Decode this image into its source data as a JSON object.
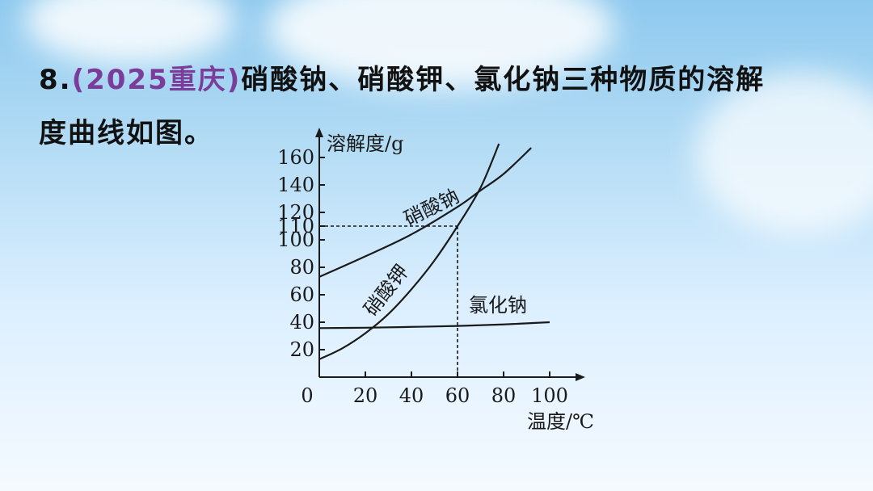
{
  "question": {
    "number": "8.",
    "source": "(2025重庆)",
    "text_line1": "硝酸钠、硝酸钾、氯化钠三种物质的溶解",
    "text_line2": "度曲线如图。"
  },
  "chart_data": {
    "type": "line",
    "ylabel": "溶解度/g",
    "xlabel": "温度/℃",
    "origin_label": "0",
    "x_ticks": [
      20,
      40,
      60,
      80,
      100
    ],
    "y_ticks": [
      20,
      40,
      60,
      80,
      100,
      110,
      120,
      140,
      160
    ],
    "xlim": [
      0,
      100
    ],
    "ylim": [
      0,
      160
    ],
    "grid": false,
    "series": [
      {
        "name": "硝酸钠",
        "x": [
          0,
          20,
          40,
          60,
          70,
          80,
          92
        ],
        "y": [
          73,
          88,
          104,
          124,
          136,
          148,
          167
        ]
      },
      {
        "name": "硝酸钾",
        "x": [
          0,
          10,
          20,
          30,
          40,
          50,
          60,
          70,
          78
        ],
        "y": [
          13,
          21,
          32,
          46,
          64,
          85,
          110,
          138,
          170
        ]
      },
      {
        "name": "氯化钠",
        "x": [
          0,
          20,
          40,
          60,
          80,
          100
        ],
        "y": [
          35.7,
          36,
          36.6,
          37.3,
          38.4,
          40
        ]
      }
    ],
    "reference_lines": [
      {
        "x": 60,
        "y": 110
      }
    ]
  }
}
